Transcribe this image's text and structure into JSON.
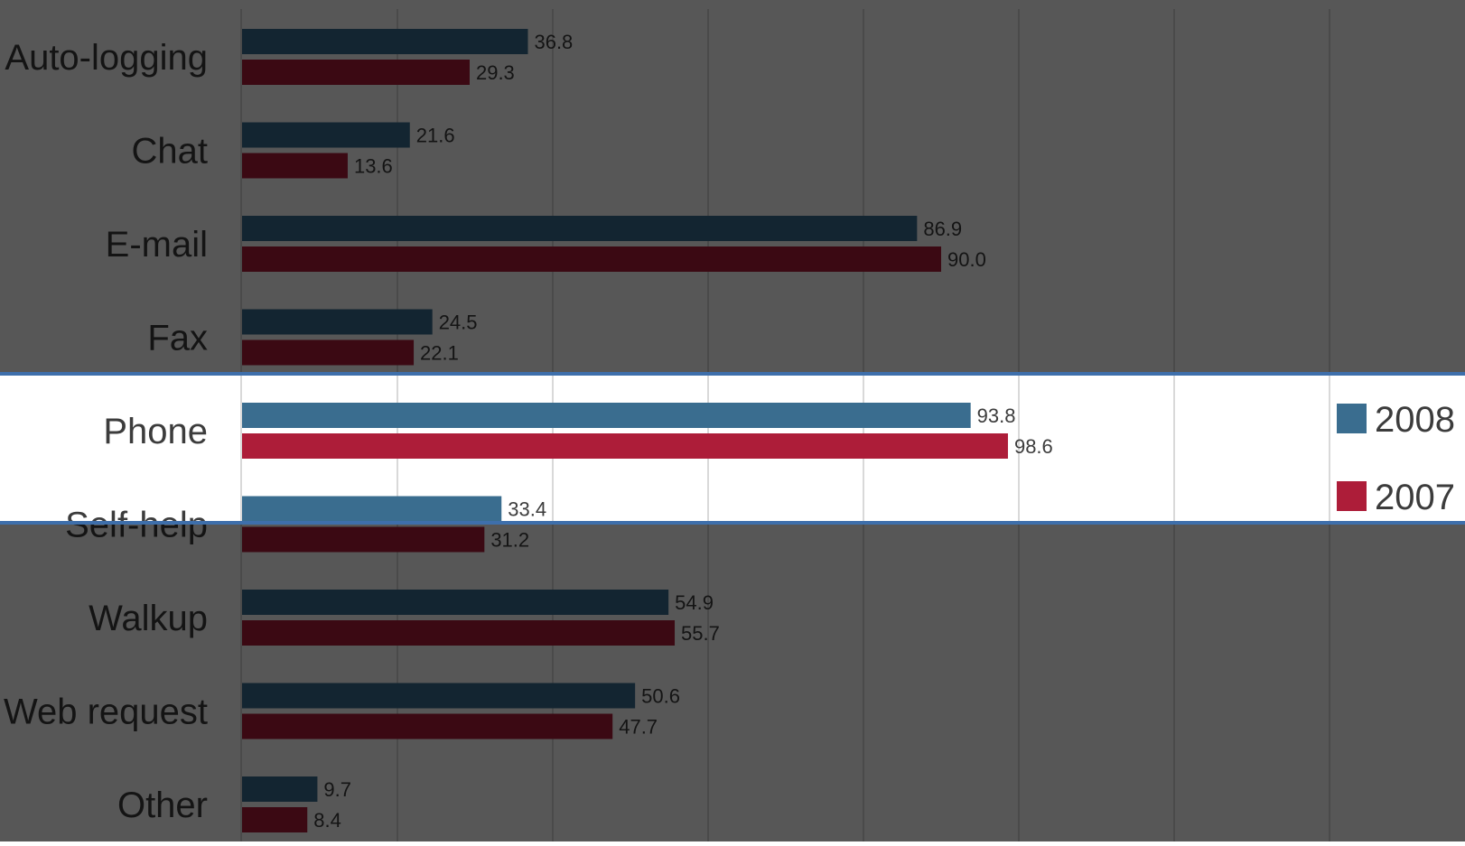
{
  "chart_data": {
    "type": "bar",
    "orientation": "horizontal",
    "categories": [
      "Auto-logging",
      "Chat",
      "E-mail",
      "Fax",
      "Phone",
      "Self-help",
      "Walkup",
      "Web request",
      "Other"
    ],
    "series": [
      {
        "name": "2008",
        "values": [
          36.8,
          21.6,
          86.9,
          24.5,
          93.8,
          33.4,
          54.9,
          50.6,
          9.7
        ]
      },
      {
        "name": "2007",
        "values": [
          29.3,
          13.6,
          90.0,
          22.1,
          98.6,
          31.2,
          55.7,
          47.7,
          8.4
        ]
      }
    ],
    "value_labels": [
      [
        "36.8",
        "21.6",
        "86.9",
        "24.5",
        "93.8",
        "33.4",
        "54.9",
        "50.6",
        "9.7"
      ],
      [
        "29.3",
        "13.6",
        "90.0",
        "22.1",
        "98.6",
        "31.2",
        "55.7",
        "47.7",
        "8.4"
      ]
    ],
    "xlim": [
      0,
      160
    ],
    "gridlines": [
      20,
      40,
      60,
      80,
      100,
      120,
      140
    ],
    "grid": true,
    "legend": "right",
    "highlighted_category": "Phone",
    "colors": {
      "series": [
        "#3a6d8f",
        "#ad1d39"
      ],
      "overlay": "#000000",
      "highlight_border": "#3e6fab",
      "grid": "#d9d9d9"
    }
  }
}
